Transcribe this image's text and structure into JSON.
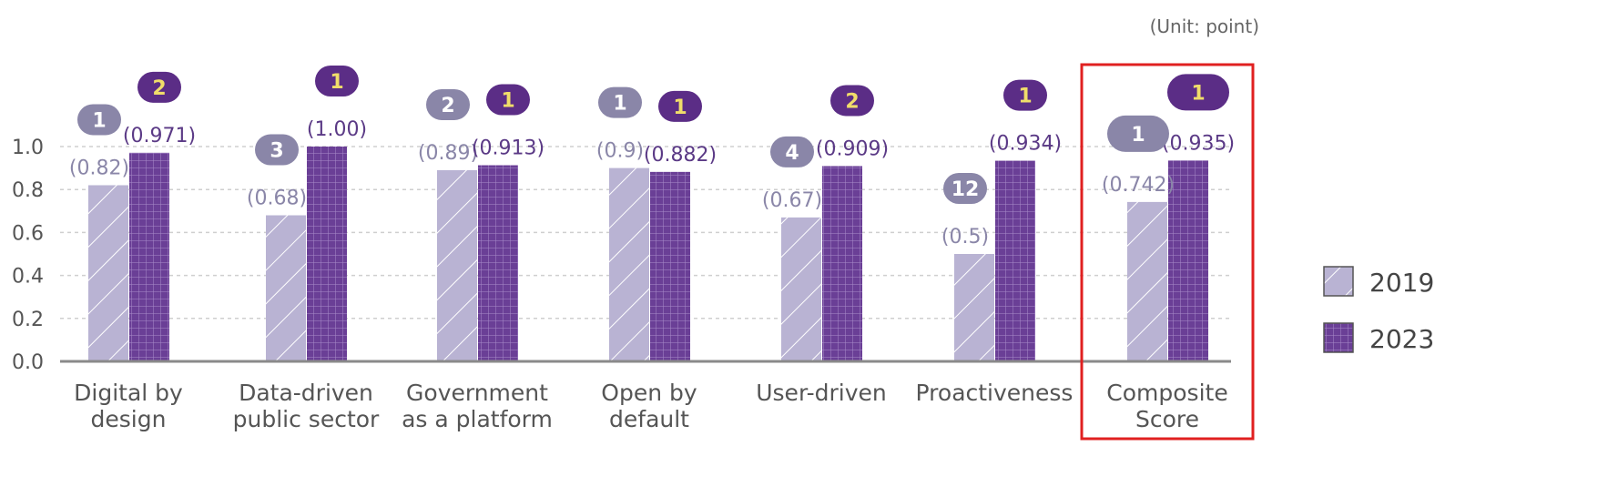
{
  "unit_label": "(Unit: point)",
  "chart_data": {
    "type": "bar",
    "categories": [
      [
        "Digital by",
        "design"
      ],
      [
        "Data-driven",
        "public sector"
      ],
      [
        "Government",
        "as a platform"
      ],
      [
        "Open by",
        "default"
      ],
      [
        "User-driven"
      ],
      [
        "Proactiveness"
      ],
      [
        "Composite",
        "Score"
      ]
    ],
    "series": [
      {
        "name": "2019",
        "values": [
          0.82,
          0.68,
          0.89,
          0.9,
          0.67,
          0.5,
          0.742
        ],
        "value_labels": [
          "(0.82)",
          "(0.68)",
          "(0.89)",
          "(0.9)",
          "(0.67)",
          "(0.5)",
          "(0.742)"
        ],
        "ranks": [
          "1",
          "3",
          "2",
          "1",
          "4",
          "12",
          "1"
        ],
        "color": "#b9b3d3",
        "pattern": "diagonal-hatch"
      },
      {
        "name": "2023",
        "values": [
          0.971,
          1.0,
          0.913,
          0.882,
          0.909,
          0.934,
          0.935
        ],
        "value_labels": [
          "(0.971)",
          "(1.00)",
          "(0.913)",
          "(0.882)",
          "(0.909)",
          "(0.934)",
          "(0.935)"
        ],
        "ranks": [
          "2",
          "1",
          "1",
          "1",
          "2",
          "1",
          "1"
        ],
        "color": "#6a3f96",
        "pattern": "grid"
      }
    ],
    "yticks": [
      "0.0",
      "0.2",
      "0.4",
      "0.6",
      "0.8",
      "1.0"
    ],
    "ylim": [
      0,
      1.0
    ],
    "grid": true,
    "legend_position": "right",
    "highlighted_category": "Composite Score",
    "highlight_color": "#e02020",
    "rank_badge_color_2019": "#8a86a8",
    "rank_badge_color_2023": "#5b2d86",
    "rank_text_color_2023": "#f0dd6a"
  }
}
